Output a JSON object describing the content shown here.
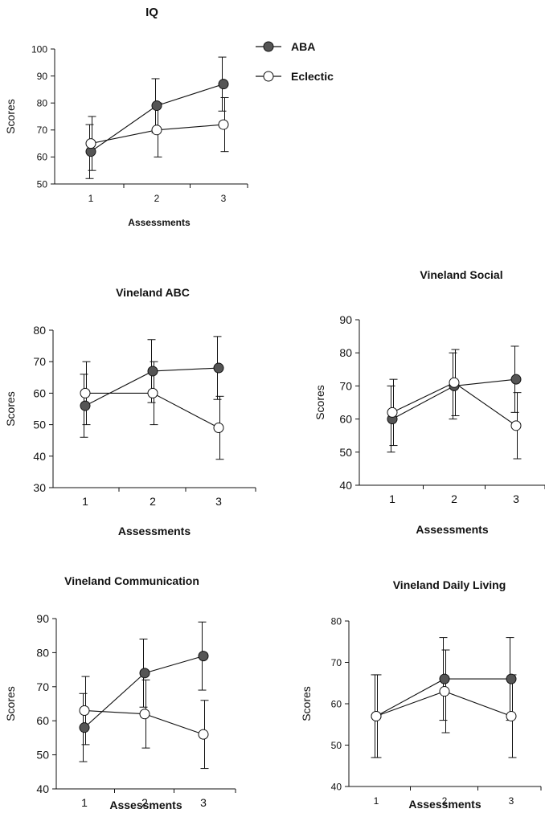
{
  "legend": [
    {
      "name": "ABA",
      "marker": "filled",
      "color": "#555555"
    },
    {
      "name": "Eclectic",
      "marker": "open",
      "color": "#ffffff"
    }
  ],
  "chart_data": [
    {
      "type": "line",
      "title": "IQ",
      "xlabel": "Assessments",
      "ylabel": "Scores",
      "x": [
        1,
        2,
        3
      ],
      "ylim": [
        50,
        100
      ],
      "yticks": [
        50,
        60,
        70,
        80,
        90,
        100
      ],
      "series": [
        {
          "name": "ABA",
          "values": [
            62,
            79,
            87
          ],
          "error": [
            10,
            10,
            10
          ]
        },
        {
          "name": "Eclectic",
          "values": [
            65,
            70,
            72
          ],
          "error": [
            10,
            10,
            10
          ]
        }
      ]
    },
    {
      "type": "line",
      "title": "Vineland ABC",
      "xlabel": "Assessments",
      "ylabel": "Scores",
      "x": [
        1,
        2,
        3
      ],
      "ylim": [
        30,
        80
      ],
      "yticks": [
        30,
        40,
        50,
        60,
        70,
        80
      ],
      "series": [
        {
          "name": "ABA",
          "values": [
            56,
            67,
            68
          ],
          "error": [
            10,
            10,
            10
          ]
        },
        {
          "name": "Eclectic",
          "values": [
            60,
            60,
            49
          ],
          "error": [
            10,
            10,
            10
          ]
        }
      ]
    },
    {
      "type": "line",
      "title": "Vineland Social",
      "xlabel": "Assessments",
      "ylabel": "Scores",
      "x": [
        1,
        2,
        3
      ],
      "ylim": [
        40,
        90
      ],
      "yticks": [
        40,
        50,
        60,
        70,
        80,
        90
      ],
      "series": [
        {
          "name": "ABA",
          "values": [
            60,
            70,
            72
          ],
          "error": [
            10,
            10,
            10
          ]
        },
        {
          "name": "Eclectic",
          "values": [
            62,
            71,
            58
          ],
          "error": [
            10,
            10,
            10
          ]
        }
      ]
    },
    {
      "type": "line",
      "title": "Vineland Communication",
      "xlabel": "Assessments",
      "ylabel": "Scores",
      "x": [
        1,
        2,
        3
      ],
      "ylim": [
        40,
        90
      ],
      "yticks": [
        40,
        50,
        60,
        70,
        80,
        90
      ],
      "series": [
        {
          "name": "ABA",
          "values": [
            58,
            74,
            79
          ],
          "error": [
            10,
            10,
            10
          ]
        },
        {
          "name": "Eclectic",
          "values": [
            63,
            62,
            56
          ],
          "error": [
            10,
            10,
            10
          ]
        }
      ]
    },
    {
      "type": "line",
      "title": "Vineland Daily Living",
      "xlabel": "Assessments",
      "ylabel": "Scores",
      "x": [
        1,
        2,
        3
      ],
      "ylim": [
        40,
        80
      ],
      "yticks": [
        40,
        50,
        60,
        70,
        80
      ],
      "series": [
        {
          "name": "ABA",
          "values": [
            57,
            66,
            66
          ],
          "error": [
            10,
            10,
            10
          ]
        },
        {
          "name": "Eclectic",
          "values": [
            57,
            63,
            57
          ],
          "error": [
            10,
            10,
            10
          ]
        }
      ]
    }
  ]
}
